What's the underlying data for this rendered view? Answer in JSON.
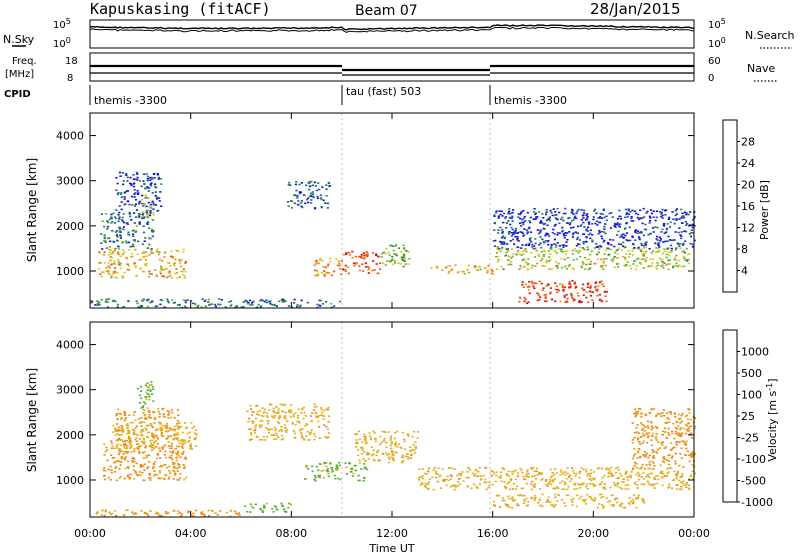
{
  "header": {
    "station": "Kapuskasing (fitACF)",
    "beam": "Beam 07",
    "date": "28/Jan/2015"
  },
  "top_panels": {
    "nsky_label": "N.Sky",
    "nsearch_label": "N.Search",
    "noise_tick_top": "10^5",
    "noise_tick_bottom": "10^0",
    "freq_label_1": "Freq.",
    "freq_label_2": "[MHz]",
    "freq_tick_top": "18",
    "freq_tick_bottom": "8",
    "nave_label": "Nave",
    "nave_tick_top": "60",
    "nave_tick_bottom": "0",
    "cpid_label": "CPID",
    "cpid_segments": [
      {
        "label": "themis -3300",
        "start_h": 0,
        "end_h": 10
      },
      {
        "label": "tau (fast) 503",
        "start_h": 10,
        "end_h": 16
      },
      {
        "label": "themis -3300",
        "start_h": 16,
        "end_h": 24
      }
    ]
  },
  "power_colorbar": {
    "label": "Power [dB]",
    "ticks": [
      "4",
      "8",
      "12",
      "16",
      "20",
      "24",
      "28"
    ],
    "colors": [
      "#1010e0",
      "#2050b0",
      "#2c8a3a",
      "#66bb33",
      "#d6cc22",
      "#f08a10",
      "#ea5818",
      "#e01010"
    ]
  },
  "velocity_colorbar": {
    "label": "Velocity [m s^-1]",
    "ticks": [
      "1000",
      "500",
      "100",
      "25",
      "-25",
      "-100",
      "-500",
      "-1000"
    ],
    "colors": [
      "#2040b0",
      "#2f7f5a",
      "#55b035",
      "#bdbdbd",
      "#e3b020",
      "#f08a10",
      "#ea4a10",
      "#e01010"
    ]
  },
  "chart_data": [
    {
      "type": "heatmap",
      "title": "Power",
      "xlabel": "Time UT",
      "ylabel": "Slant Range [km]",
      "xlim_hours": [
        0,
        24
      ],
      "ylim_km": [
        180,
        4500
      ],
      "x_ticks": [
        "00:00",
        "04:00",
        "08:00",
        "12:00",
        "16:00",
        "20:00",
        "00:00"
      ],
      "y_ticks": [
        "1000",
        "2000",
        "3000",
        "4000"
      ],
      "colorbar": "power_colorbar",
      "regions": [
        {
          "t0": 0.3,
          "t1": 3.8,
          "r0": 850,
          "r1": 1500,
          "v": 20
        },
        {
          "t0": 0.4,
          "t1": 2.5,
          "r0": 1500,
          "r1": 2300,
          "v": 8
        },
        {
          "t0": 1.0,
          "t1": 2.8,
          "r0": 2300,
          "r1": 3200,
          "v": 4
        },
        {
          "t0": 2.0,
          "t1": 2.5,
          "r0": 2200,
          "r1": 2700,
          "v": 16
        },
        {
          "t0": 7.8,
          "t1": 9.5,
          "r0": 2400,
          "r1": 3000,
          "v": 6
        },
        {
          "t0": 8.8,
          "t1": 10.0,
          "r0": 900,
          "r1": 1300,
          "v": 22
        },
        {
          "t0": 10.0,
          "t1": 11.5,
          "r0": 950,
          "r1": 1450,
          "v": 26
        },
        {
          "t0": 11.5,
          "t1": 12.8,
          "r0": 1100,
          "r1": 1600,
          "v": 14
        },
        {
          "t0": 13.5,
          "t1": 16.0,
          "r0": 950,
          "r1": 1150,
          "v": 20
        },
        {
          "t0": 16.0,
          "t1": 23.8,
          "r0": 1050,
          "r1": 1550,
          "v": 16
        },
        {
          "t0": 16.0,
          "t1": 24.0,
          "r0": 1500,
          "r1": 2400,
          "v": 4
        },
        {
          "t0": 17.0,
          "t1": 20.5,
          "r0": 300,
          "r1": 800,
          "v": 28
        },
        {
          "t0": 0.0,
          "t1": 10.0,
          "r0": 200,
          "r1": 400,
          "v": 8
        }
      ]
    },
    {
      "type": "heatmap",
      "title": "Velocity",
      "xlabel": "Time UT",
      "ylabel": "Slant Range [km]",
      "xlim_hours": [
        0,
        24
      ],
      "ylim_km": [
        180,
        4500
      ],
      "x_ticks": [
        "00:00",
        "04:00",
        "08:00",
        "12:00",
        "16:00",
        "20:00",
        "00:00"
      ],
      "y_ticks": [
        "1000",
        "2000",
        "3000",
        "4000"
      ],
      "colorbar": "velocity_colorbar",
      "regions": [
        {
          "t0": 0.5,
          "t1": 3.8,
          "r0": 1000,
          "r1": 1900,
          "v": -100
        },
        {
          "t0": 1.0,
          "t1": 3.5,
          "r0": 1900,
          "r1": 2600,
          "v": -100
        },
        {
          "t0": 0.8,
          "t1": 4.2,
          "r0": 1700,
          "r1": 2300,
          "v": 0
        },
        {
          "t0": 1.8,
          "t1": 2.5,
          "r0": 2600,
          "r1": 3200,
          "v": 100
        },
        {
          "t0": 6.2,
          "t1": 9.5,
          "r0": 1900,
          "r1": 2700,
          "v": 0
        },
        {
          "t0": 8.5,
          "t1": 11.0,
          "r0": 1000,
          "r1": 1400,
          "v": 100
        },
        {
          "t0": 10.5,
          "t1": 13.0,
          "r0": 1400,
          "r1": 2100,
          "v": 0
        },
        {
          "t0": 13.0,
          "t1": 24.0,
          "r0": 800,
          "r1": 1300,
          "v": 0
        },
        {
          "t0": 16.0,
          "t1": 22.0,
          "r0": 400,
          "r1": 700,
          "v": 0
        },
        {
          "t0": 21.5,
          "t1": 24.0,
          "r0": 1300,
          "r1": 2600,
          "v": -100
        },
        {
          "t0": 6.0,
          "t1": 8.0,
          "r0": 300,
          "r1": 500,
          "v": 100
        },
        {
          "t0": 0.0,
          "t1": 6.0,
          "r0": 200,
          "r1": 350,
          "v": -100
        }
      ]
    }
  ]
}
